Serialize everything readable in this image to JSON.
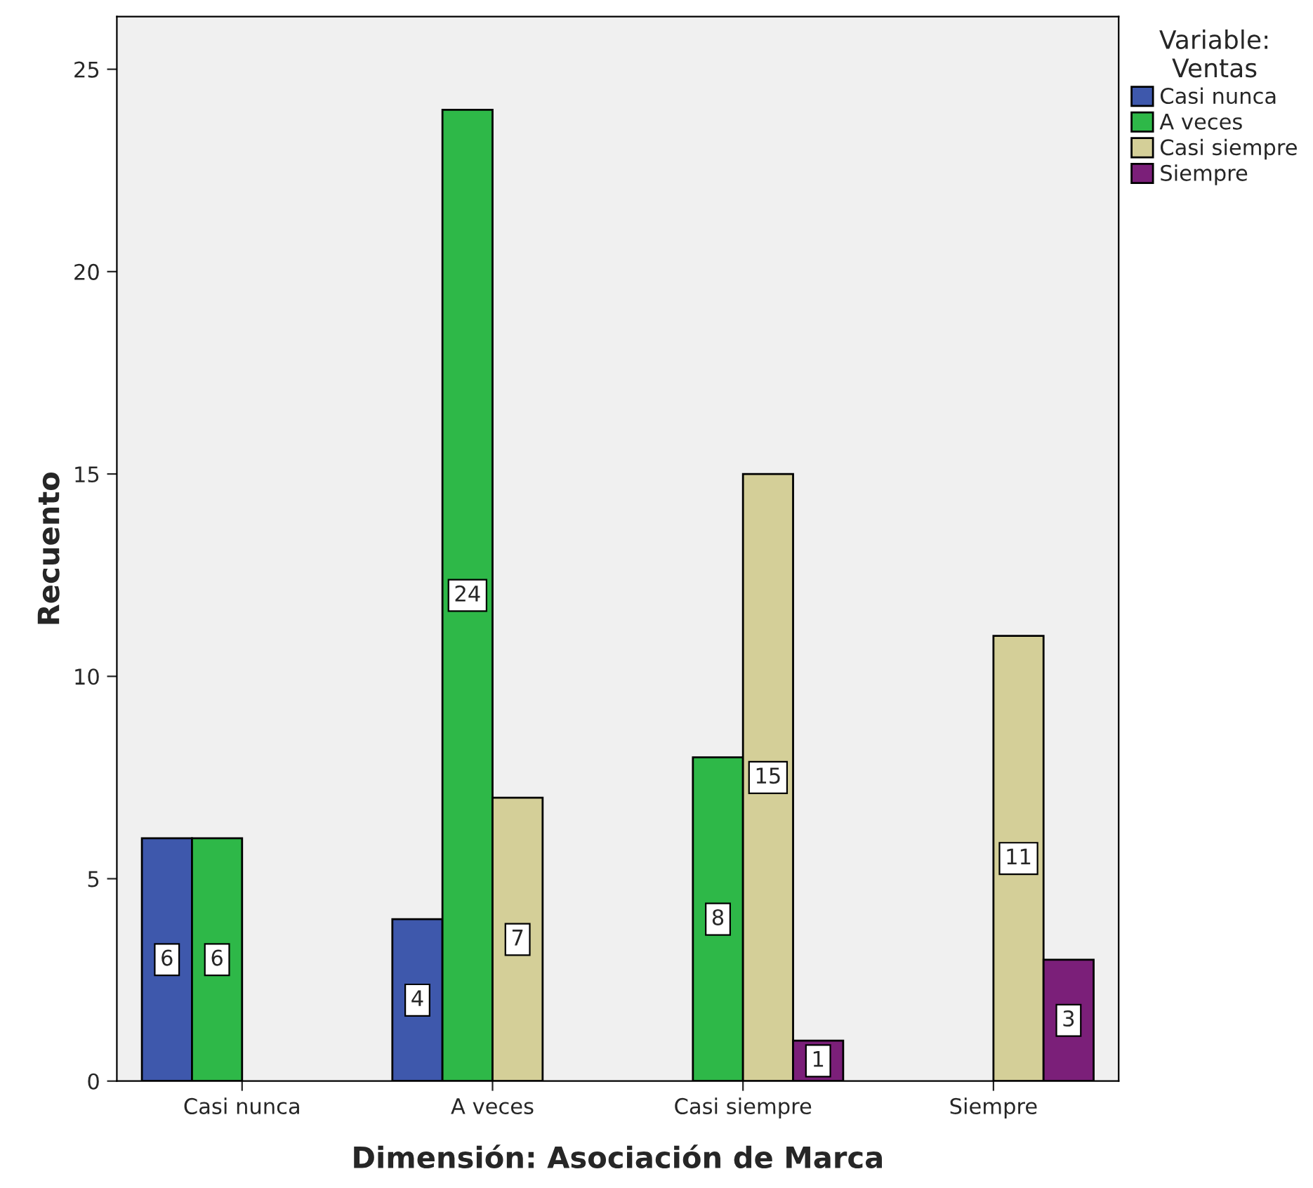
{
  "chart_data": {
    "type": "bar",
    "xlabel": "Dimensión: Asociación de Marca",
    "ylabel": "Recuento",
    "legend_title": "Variable:\nVentas",
    "categories": [
      "Casi nunca",
      "A veces",
      "Casi siempre",
      "Siempre"
    ],
    "series": [
      {
        "name": "Casi nunca",
        "color": "#3e58ac",
        "values": [
          6,
          4,
          null,
          null
        ]
      },
      {
        "name": "A veces",
        "color": "#2eb848",
        "values": [
          6,
          24,
          8,
          null
        ]
      },
      {
        "name": "Casi siempre",
        "color": "#d4cf98",
        "values": [
          null,
          7,
          15,
          11
        ]
      },
      {
        "name": "Siempre",
        "color": "#7b1f79",
        "values": [
          null,
          null,
          1,
          3
        ]
      }
    ],
    "ylim": [
      0,
      26.3
    ],
    "yticks": [
      0,
      5,
      10,
      15,
      20,
      25
    ],
    "grid": false,
    "legend": "right",
    "data_labels": true
  }
}
